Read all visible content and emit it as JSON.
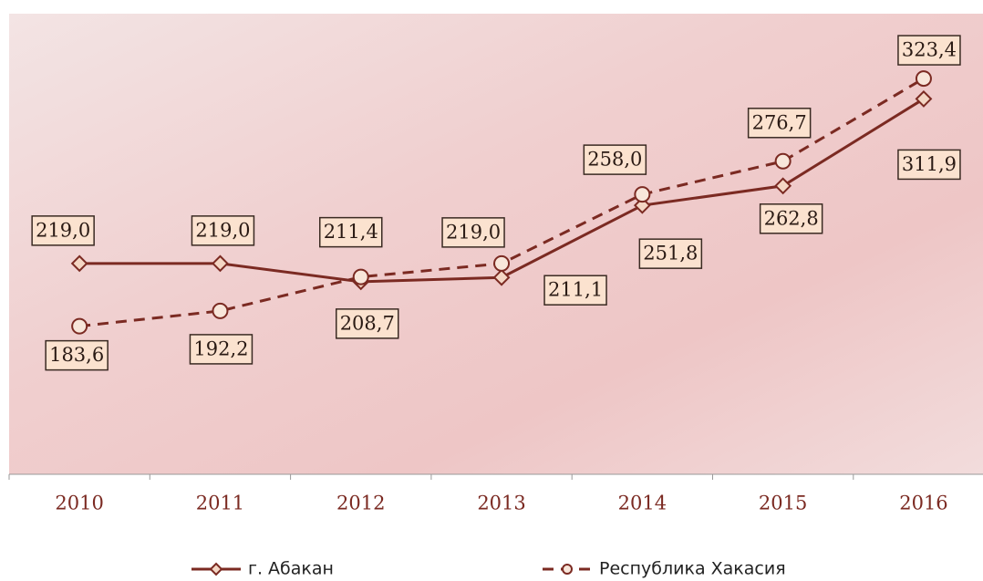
{
  "chart_data": {
    "type": "line",
    "categories": [
      "2010",
      "2011",
      "2012",
      "2013",
      "2014",
      "2015",
      "2016"
    ],
    "series": [
      {
        "name": "г. Абакан",
        "color": "#7b2a22",
        "marker": "diamond",
        "dash": false,
        "values": [
          219.0,
          219.0,
          208.7,
          211.1,
          251.8,
          262.8,
          311.9
        ],
        "value_labels": [
          "219,0",
          "219,0",
          "208,7",
          "211,1",
          "251,8",
          "262,8",
          "311,9"
        ]
      },
      {
        "name": "Республика Хакасия",
        "color": "#7b2a22",
        "marker": "circle",
        "dash": true,
        "values": [
          183.6,
          192.2,
          211.4,
          219.0,
          258.0,
          276.7,
          323.4
        ],
        "value_labels": [
          "183,6",
          "192,2",
          "211,4",
          "219,0",
          "258,0",
          "276,7",
          "323,4"
        ]
      }
    ],
    "ylim": [
      100,
      360
    ],
    "grid": false,
    "legend": "bottom"
  }
}
